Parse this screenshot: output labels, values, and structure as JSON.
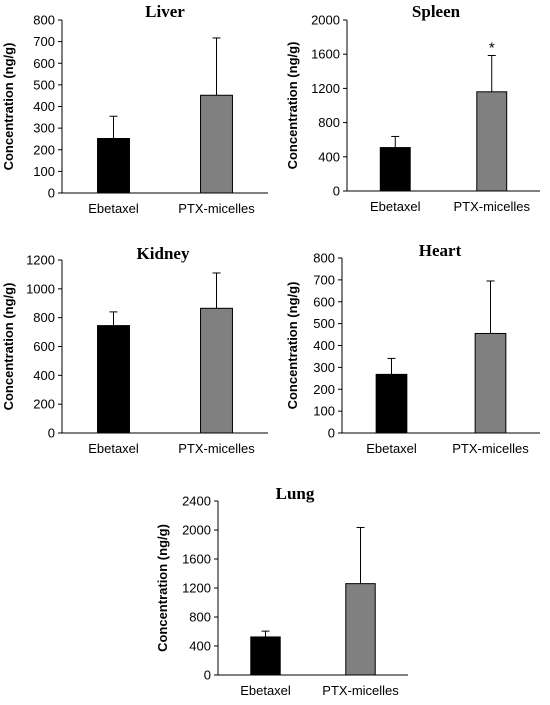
{
  "colors": {
    "axis": "#000000",
    "Ebetaxel": "#000000",
    "PTX-micelles": "#808080",
    "error_bar": "#000000"
  },
  "chart_data": [
    {
      "type": "bar",
      "title": "Liver",
      "ylabel": "Concentration (ng/g)",
      "categories": [
        "Ebetaxel",
        "PTX-micelles"
      ],
      "values": [
        252,
        452
      ],
      "errors": [
        103,
        265
      ],
      "annotations": [
        "",
        ""
      ],
      "ylim": [
        0,
        800
      ],
      "yticks": [
        0,
        100,
        200,
        300,
        400,
        500,
        600,
        700,
        800
      ],
      "grid": false
    },
    {
      "type": "bar",
      "title": "Spleen",
      "ylabel": "Concentration (ng/g)",
      "categories": [
        "Ebetaxel",
        "PTX-micelles"
      ],
      "values": [
        508,
        1160
      ],
      "errors": [
        130,
        425
      ],
      "annotations": [
        "",
        "*"
      ],
      "ylim": [
        0,
        2000
      ],
      "yticks": [
        0,
        400,
        800,
        1200,
        1600,
        2000
      ],
      "grid": false
    },
    {
      "type": "bar",
      "title": "Kidney",
      "ylabel": "Concentration (ng/g)",
      "categories": [
        "Ebetaxel",
        "PTX-micelles"
      ],
      "values": [
        745,
        865
      ],
      "errors": [
        95,
        245
      ],
      "annotations": [
        "",
        ""
      ],
      "ylim": [
        0,
        1200
      ],
      "yticks": [
        0,
        200,
        400,
        600,
        800,
        1000,
        1200
      ],
      "grid": false
    },
    {
      "type": "bar",
      "title": "Heart",
      "ylabel": "Concentration (ng/g)",
      "categories": [
        "Ebetaxel",
        "PTX-micelles"
      ],
      "values": [
        268,
        455
      ],
      "errors": [
        73,
        240
      ],
      "annotations": [
        "",
        ""
      ],
      "ylim": [
        0,
        800
      ],
      "yticks": [
        0,
        100,
        200,
        300,
        400,
        500,
        600,
        700,
        800
      ],
      "grid": false
    },
    {
      "type": "bar",
      "title": "Lung",
      "ylabel": "Concentration (ng/g)",
      "categories": [
        "Ebetaxel",
        "PTX-micelles"
      ],
      "values": [
        525,
        1260
      ],
      "errors": [
        80,
        775
      ],
      "annotations": [
        "",
        ""
      ],
      "ylim": [
        0,
        2400
      ],
      "yticks": [
        0,
        400,
        800,
        1200,
        1600,
        2000,
        2400
      ],
      "grid": false
    }
  ]
}
